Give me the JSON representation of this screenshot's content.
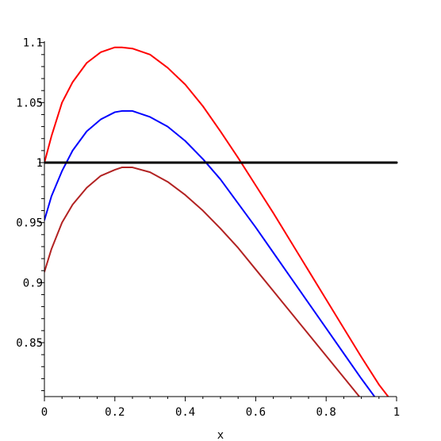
{
  "chart_data": {
    "type": "line",
    "title": "",
    "xlabel": "x",
    "ylabel": "",
    "xlim": [
      0,
      1
    ],
    "ylim": [
      0.81,
      1.1
    ],
    "grid": false,
    "x_ticks": [
      {
        "value": 0,
        "label": "0"
      },
      {
        "value": 0.2,
        "label": "0.2"
      },
      {
        "value": 0.4,
        "label": "0.4"
      },
      {
        "value": 0.6,
        "label": "0.6"
      },
      {
        "value": 0.8,
        "label": "0.8"
      },
      {
        "value": 1,
        "label": "1"
      }
    ],
    "y_ticks": [
      {
        "value": 0.85,
        "label": "0.85"
      },
      {
        "value": 0.9,
        "label": "0.9"
      },
      {
        "value": 0.95,
        "label": "0.95"
      },
      {
        "value": 1,
        "label": "1"
      },
      {
        "value": 1.05,
        "label": "1.05"
      },
      {
        "value": 1.1,
        "label": "1.1"
      }
    ],
    "x": [
      0,
      0.02,
      0.05,
      0.08,
      0.12,
      0.16,
      0.2,
      0.22,
      0.25,
      0.3,
      0.35,
      0.4,
      0.45,
      0.5,
      0.55,
      0.6,
      0.65,
      0.7,
      0.75,
      0.8,
      0.85,
      0.9,
      0.95,
      1.0
    ],
    "series": [
      {
        "color": "#ff0000",
        "values": [
          1.0,
          1.022,
          1.05,
          1.067,
          1.083,
          1.092,
          1.096,
          1.096,
          1.095,
          1.09,
          1.079,
          1.065,
          1.047,
          1.026,
          1.004,
          0.981,
          0.958,
          0.934,
          0.91,
          0.886,
          0.862,
          0.838,
          0.815,
          0.796
        ]
      },
      {
        "color": "#0000ff",
        "values": [
          0.952,
          0.972,
          0.993,
          1.01,
          1.026,
          1.036,
          1.042,
          1.043,
          1.043,
          1.038,
          1.03,
          1.018,
          1.003,
          0.986,
          0.966,
          0.946,
          0.925,
          0.904,
          0.883,
          0.862,
          0.841,
          0.82,
          0.8,
          0.78
        ]
      },
      {
        "color": "#b22222",
        "values": [
          0.909,
          0.928,
          0.95,
          0.965,
          0.979,
          0.989,
          0.994,
          0.996,
          0.996,
          0.992,
          0.984,
          0.973,
          0.96,
          0.945,
          0.929,
          0.911,
          0.893,
          0.875,
          0.857,
          0.839,
          0.821,
          0.803,
          0.785,
          0.767
        ]
      },
      {
        "color": "#000000",
        "values": [
          1.0,
          1.0,
          1.0,
          1.0,
          1.0,
          1.0,
          1.0,
          1.0,
          1.0,
          1.0,
          1.0,
          1.0,
          1.0,
          1.0,
          1.0,
          1.0,
          1.0,
          1.0,
          1.0,
          1.0,
          1.0,
          1.0,
          1.0,
          1.0
        ]
      }
    ]
  }
}
